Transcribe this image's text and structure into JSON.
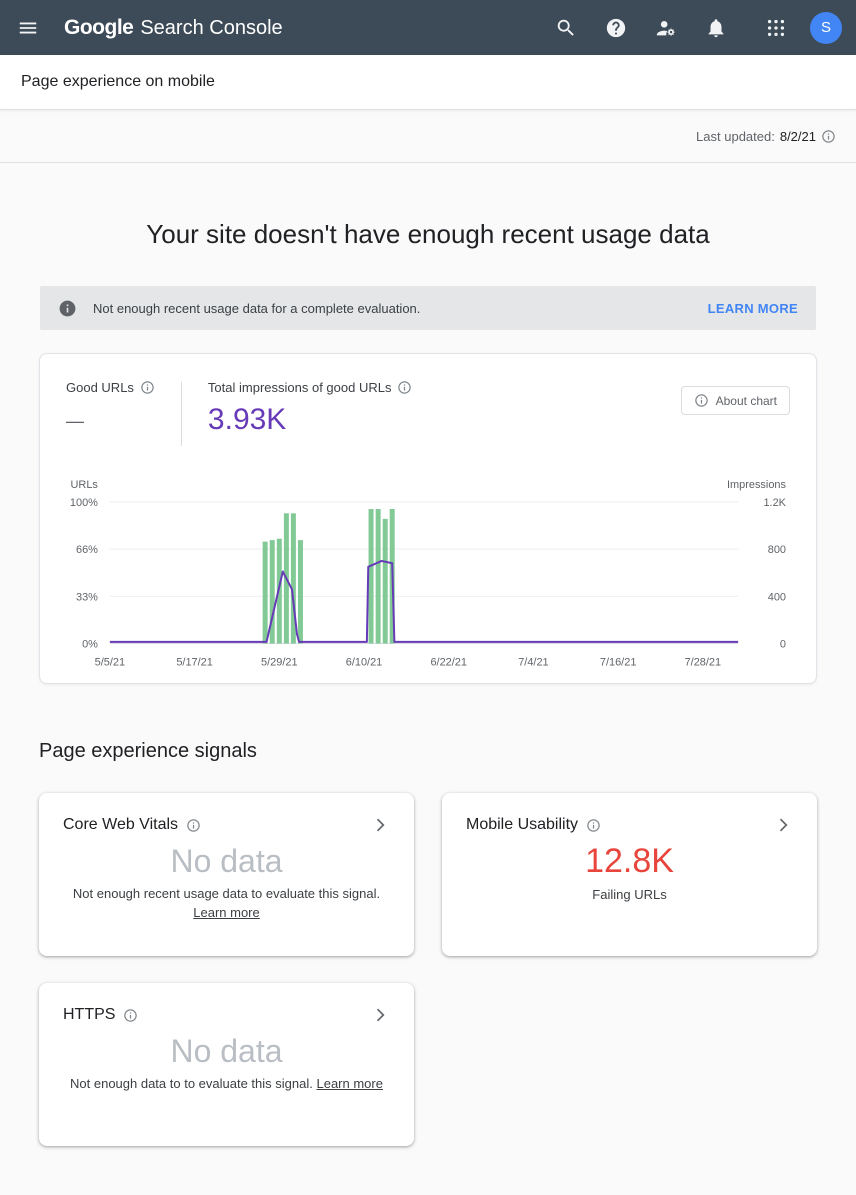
{
  "topbar": {
    "logo": {
      "google": "Google",
      "product": "Search Console"
    },
    "avatar_letter": "S",
    "icons": {
      "menu-icon": "hamburger",
      "search-icon": "magnifier",
      "help-icon": "question-mark-circle",
      "manage-accounts-icon": "person-with-gear",
      "notifications-icon": "bell",
      "apps-grid-icon": "3x3-dots",
      "info-icon": "i-in-circle",
      "chevron-right-icon": "angle-right"
    }
  },
  "breadcrumb": {
    "title": "Page experience on mobile"
  },
  "meta": {
    "last_updated_label": "Last updated:",
    "last_updated_value": "8/2/21"
  },
  "page": {
    "heading": "Your site doesn't have enough recent usage data"
  },
  "banner": {
    "message": "Not enough recent usage data for a complete evaluation.",
    "action_label": "LEARN MORE"
  },
  "summary": {
    "good_urls": {
      "label": "Good URLs",
      "value": "—"
    },
    "impressions": {
      "label": "Total impressions of good URLs",
      "value": "3.93K",
      "color": "#673ab7"
    },
    "about_chart_label": "About chart"
  },
  "chart_data": {
    "type": "bar+line",
    "title": "Good URLs % and total impressions of good URLs over time",
    "domain_days": 90,
    "x_ticks": [
      {
        "day": 0,
        "label": "5/5/21"
      },
      {
        "day": 12,
        "label": "5/17/21"
      },
      {
        "day": 24,
        "label": "5/29/21"
      },
      {
        "day": 36,
        "label": "6/10/21"
      },
      {
        "day": 48,
        "label": "6/22/21"
      },
      {
        "day": 60,
        "label": "7/4/21"
      },
      {
        "day": 72,
        "label": "7/16/21"
      },
      {
        "day": 84,
        "label": "7/28/21"
      }
    ],
    "left_axis": {
      "label": "URLs",
      "max": 100,
      "ticks": [
        "100%",
        "66%",
        "33%",
        "0%"
      ]
    },
    "right_axis": {
      "label": "Impressions",
      "max": 1200,
      "ticks": [
        "1.2K",
        "800",
        "400",
        "0"
      ]
    },
    "grid": true,
    "bars": {
      "name": "Good URLs",
      "color": "#81c995",
      "values": [
        {
          "day": 22,
          "pct": 72
        },
        {
          "day": 23,
          "pct": 73
        },
        {
          "day": 24,
          "pct": 74
        },
        {
          "day": 25,
          "pct": 92
        },
        {
          "day": 26,
          "pct": 92
        },
        {
          "day": 27,
          "pct": 73
        },
        {
          "day": 37,
          "pct": 95
        },
        {
          "day": 38,
          "pct": 95
        },
        {
          "day": 39,
          "pct": 88
        },
        {
          "day": 40,
          "pct": 95
        }
      ]
    },
    "line": {
      "name": "Total impressions of good URLs",
      "color": "#673ab7",
      "axis": "right",
      "points": [
        [
          0,
          14
        ],
        [
          22.2,
          14
        ],
        [
          24.5,
          610
        ],
        [
          25.8,
          460
        ],
        [
          26.5,
          80
        ],
        [
          26.8,
          14
        ],
        [
          36.4,
          14
        ],
        [
          36.6,
          650
        ],
        [
          38.5,
          700
        ],
        [
          40.0,
          680
        ],
        [
          40.3,
          14
        ],
        [
          89,
          14
        ]
      ]
    }
  },
  "signals": {
    "heading": "Page experience signals",
    "cards": [
      {
        "title": "Core Web Vitals",
        "value": "No data",
        "caption": "Not enough recent usage data to evaluate this signal.",
        "link_label": "Learn more"
      },
      {
        "title": "Mobile Usability",
        "value": "12.8K",
        "caption": "Failing URLs",
        "link_label": ""
      },
      {
        "title": "HTTPS",
        "value": "No data",
        "caption": "Not enough data to to evaluate this signal.",
        "link_label": "Learn more"
      }
    ]
  },
  "colors": {
    "header_bg": "#3c4b57",
    "accent_blue": "#4285f4",
    "impressions_purple": "#673ab7",
    "bar_green": "#81c995",
    "error_red": "#e8453c"
  }
}
